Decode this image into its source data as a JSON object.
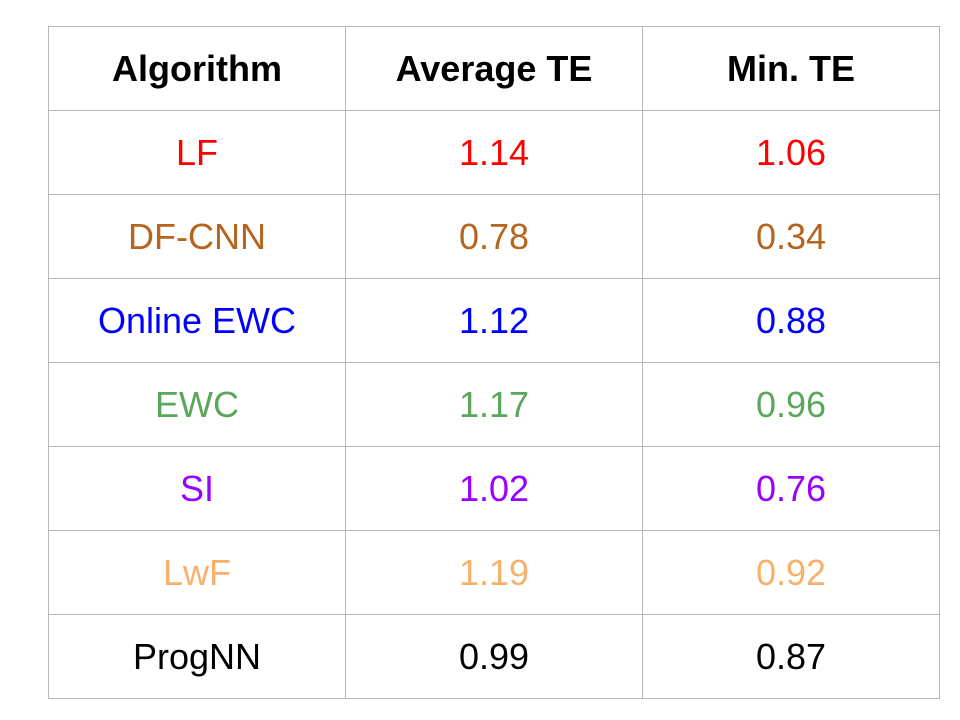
{
  "chart_data": {
    "type": "table",
    "columns": [
      "Algorithm",
      "Average TE",
      "Min. TE"
    ],
    "rows": [
      {
        "algorithm": "LF",
        "average_te": "1.14",
        "min_te": "1.06",
        "color": "#ff0000"
      },
      {
        "algorithm": "DF-CNN",
        "average_te": "0.78",
        "min_te": "0.34",
        "color": "#b5651d"
      },
      {
        "algorithm": "Online EWC",
        "average_te": "1.12",
        "min_te": "0.88",
        "color": "#0000ff"
      },
      {
        "algorithm": "EWC",
        "average_te": "1.17",
        "min_te": "0.96",
        "color": "#5ba65b"
      },
      {
        "algorithm": "SI",
        "average_te": "1.02",
        "min_te": "0.76",
        "color": "#9900ff"
      },
      {
        "algorithm": "LwF",
        "average_te": "1.19",
        "min_te": "0.92",
        "color": "#f6b26b"
      },
      {
        "algorithm": "ProgNN",
        "average_te": "0.99",
        "min_te": "0.87",
        "color": "#000000"
      }
    ]
  }
}
